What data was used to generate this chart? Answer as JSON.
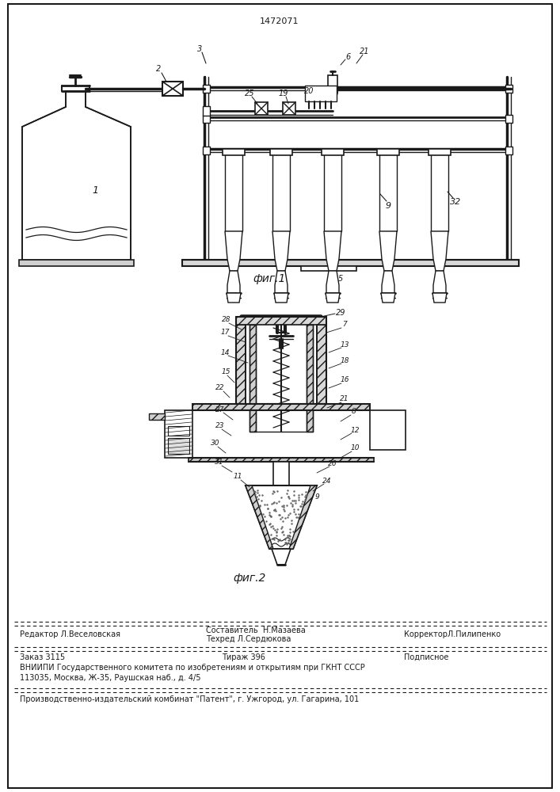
{
  "patent_number": "1472071",
  "fig1_label": "фиг.1",
  "fig2_label": "фиг.2",
  "bg_color": "#ffffff",
  "line_color": "#1a1a1a",
  "footer_line1_left": "Редактор Л.Веселовская",
  "footer_составитель": "Составитель  Н.Мазаева",
  "footer_техред": "Техред Л.Сердюкова",
  "footer_корректор": "КорректорЛ.Пилипенко",
  "footer_заказ": "Заказ 3115",
  "footer_тираж": "Тираж 396",
  "footer_подписное": "Подписное",
  "footer_вниипи": "ВНИИПИ Государственного комитета по изобретениям и открытиям при ГКНТ СССР",
  "footer_адрес": "113035, Москва, Ж-35, Раушская наб., д. 4/5",
  "footer_патент": "Производственно-издательский комбинат \"Патент\", г. Ужгород, ул. Гагарина, 101"
}
